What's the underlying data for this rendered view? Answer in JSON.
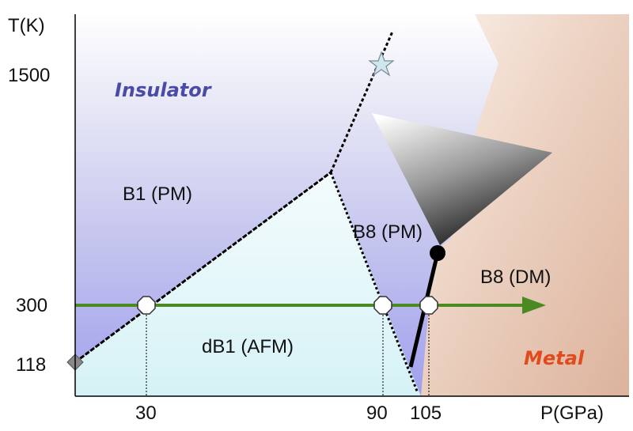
{
  "axes": {
    "y_label": "T(K)",
    "x_label": "P(GPa)",
    "y_ticks": [
      "1500",
      "300",
      "118"
    ],
    "x_ticks": [
      "30",
      "90",
      "105"
    ]
  },
  "regions": {
    "insulator": "Insulator",
    "metal": "Metal",
    "b1_pm": "B1 (PM)",
    "db1_afm": "dB1 (AFM)",
    "b8_pm": "B8 (PM)",
    "b8_dm": "B8 (DM)"
  },
  "colors": {
    "insulator_text": "#4a4aa8",
    "metal_text": "#e24a1c",
    "isotherm": "#4a8a20",
    "metal_region": "#e6c4b0",
    "afm_region": "#e2f6f8"
  },
  "markers": {
    "star": "star-icon",
    "critical_point": "filled-circle",
    "neel_point": "diamond-icon",
    "transition_points": "open-octagon"
  }
}
